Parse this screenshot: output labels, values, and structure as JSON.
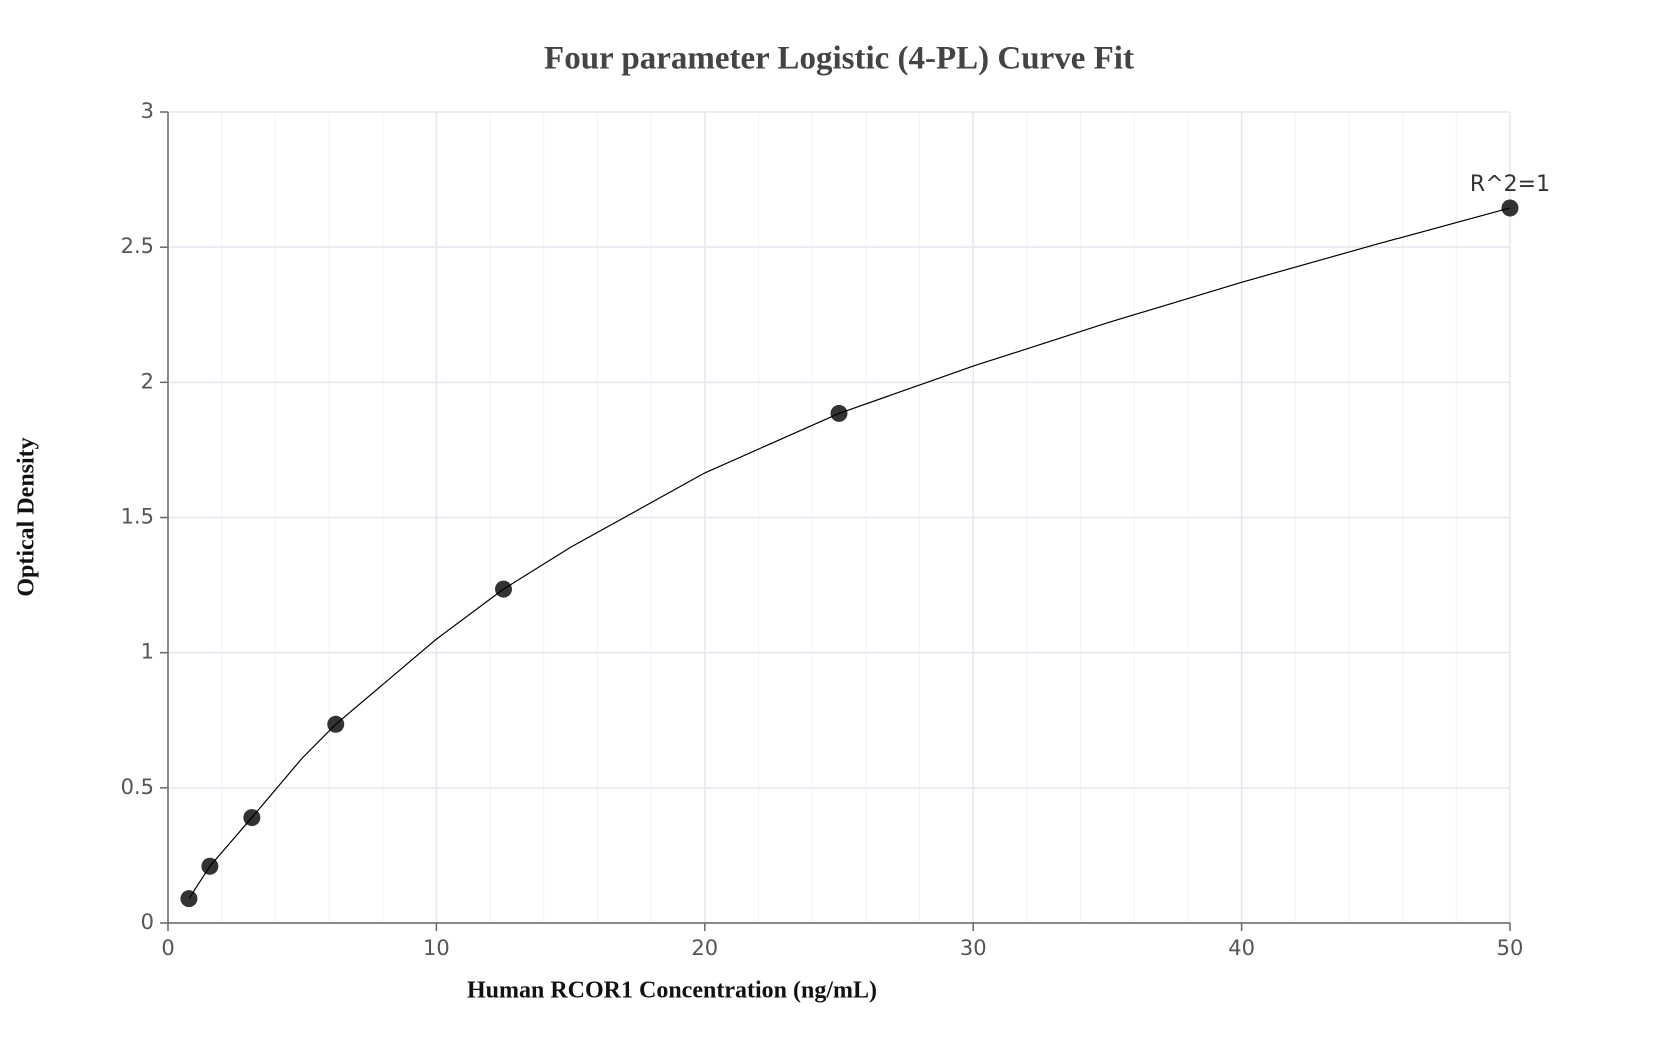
{
  "chart_data": {
    "type": "scatter",
    "title": "Four parameter Logistic (4-PL) Curve Fit",
    "x_label": "Human RCOR1 Concentration (ng/mL)",
    "y_label": "Optical Density",
    "annotation": "R^2=1",
    "xlim": [
      0,
      50
    ],
    "ylim": [
      0,
      3
    ],
    "xticks": [
      0,
      10,
      20,
      30,
      40,
      50
    ],
    "xminorticks": [
      2,
      4,
      6,
      8,
      12,
      14,
      16,
      18,
      22,
      24,
      26,
      28,
      32,
      34,
      36,
      38,
      42,
      44,
      46,
      48
    ],
    "yticks": [
      0,
      0.5,
      1,
      1.5,
      2,
      2.5,
      3
    ],
    "grid": true,
    "series": [
      {
        "color": "#333333",
        "marker": true,
        "x": [
          0.78,
          1.56,
          3.125,
          6.25,
          12.5,
          25,
          50
        ],
        "values": [
          0.09,
          0.21,
          0.39,
          0.735,
          1.235,
          1.885,
          2.645
        ]
      },
      {
        "color": "#000000",
        "marker": false,
        "x": [
          0.78,
          1.56,
          3.125,
          5,
          6.25,
          10,
          12.5,
          15,
          20,
          25,
          30,
          35,
          40,
          45,
          50
        ],
        "values": [
          0.09,
          0.21,
          0.39,
          0.61,
          0.735,
          1.05,
          1.235,
          1.39,
          1.665,
          1.885,
          2.06,
          2.22,
          2.37,
          2.51,
          2.645
        ]
      }
    ]
  }
}
